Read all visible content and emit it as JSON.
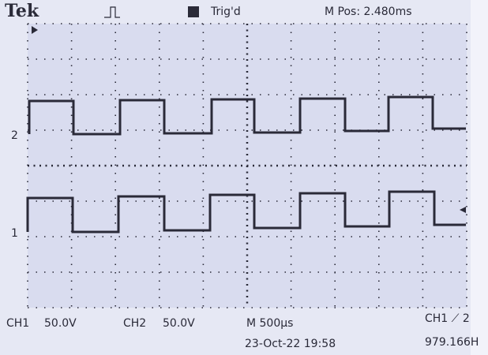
{
  "header": {
    "brand": "Tek",
    "trigger_status": "Trig'd",
    "position": "M Pos: 2.480ms"
  },
  "markers": {
    "ch2": "2",
    "ch1": "1"
  },
  "footer": {
    "ch1_label": "CH1",
    "ch1_scale": "50.0V",
    "ch2_label": "CH2",
    "ch2_scale": "50.0V",
    "timebase": "M 500µs",
    "trigger": "CH1 ⟋ 2",
    "date_time": "23-Oct-22 19:58",
    "frequency": "979.166H"
  }
}
